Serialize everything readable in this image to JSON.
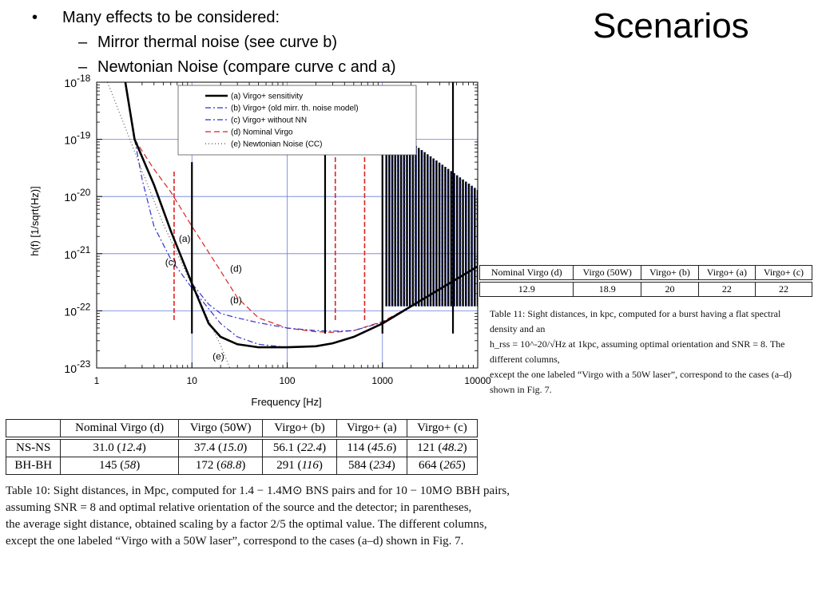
{
  "slide": {
    "title": "Scenarios",
    "bullets": [
      {
        "marker": "•",
        "text": "Many effects to be considered:"
      },
      {
        "marker": "–",
        "text": "Mirror thermal noise (see curve b)"
      },
      {
        "marker": "–",
        "text": "Newtonian Noise (compare curve c and a)"
      }
    ]
  },
  "chart_data": {
    "type": "line",
    "xlabel": "Frequency [Hz]",
    "ylabel": "h(f)  [1/sqrt(Hz)]",
    "xscale": "log",
    "yscale": "log",
    "xlim": [
      1,
      10000
    ],
    "ylim": [
      1e-23,
      1e-18
    ],
    "grid": true,
    "legend_position": "top-center",
    "x_ticks": [
      "1",
      "10",
      "100",
      "1000",
      "10000"
    ],
    "y_ticks": [
      {
        "base": "10",
        "exp": "-23"
      },
      {
        "base": "10",
        "exp": "-22"
      },
      {
        "base": "10",
        "exp": "-21"
      },
      {
        "base": "10",
        "exp": "-20"
      },
      {
        "base": "10",
        "exp": "-19"
      },
      {
        "base": "10",
        "exp": "-18"
      }
    ],
    "series": [
      {
        "name": "(a) Virgo+ sensitivity",
        "label": "(a)",
        "color": "#000000",
        "style": "solid",
        "x": [
          2.0,
          2.5,
          4,
          6,
          10,
          15,
          20,
          30,
          50,
          100,
          200,
          300,
          500,
          1000,
          2000,
          5000,
          10000
        ],
        "y": [
          1e-18,
          1e-19,
          1.6e-20,
          2.5e-21,
          3e-22,
          6e-23,
          3.5e-23,
          2.6e-23,
          2.3e-23,
          2.3e-23,
          2.4e-23,
          2.7e-23,
          3.5e-23,
          6e-23,
          1.2e-22,
          3e-22,
          6e-22
        ]
      },
      {
        "name": "(b) Virgo+ (old mirr. th. noise model)",
        "label": "(b)",
        "color": "#3333cc",
        "style": "dashdot",
        "x": [
          2.5,
          4,
          6,
          10,
          15,
          20,
          30,
          50,
          100,
          200,
          300,
          500,
          1000,
          2000,
          5000,
          10000
        ],
        "y": [
          1e-19,
          1.6e-20,
          2.5e-21,
          3e-22,
          1.3e-22,
          9e-23,
          7.5e-23,
          6.2e-23,
          5e-23,
          4.5e-23,
          4.4e-23,
          4.5e-23,
          6.3e-23,
          1.2e-22,
          3e-22,
          6e-22
        ]
      },
      {
        "name": "(c) Virgo+ without NN",
        "label": "(c)",
        "color": "#3333cc",
        "style": "dashdot",
        "x": [
          2.5,
          3,
          4,
          6,
          10,
          20,
          30,
          50,
          100
        ],
        "y": [
          1e-19,
          2e-20,
          3e-21,
          8e-22,
          2.5e-22,
          6e-23,
          3.5e-23,
          2.6e-23,
          2.3e-23
        ]
      },
      {
        "name": "(d) Nominal Virgo",
        "label": "(d)",
        "color": "#dd2222",
        "style": "dashed",
        "x": [
          2.5,
          4,
          6,
          10,
          20,
          30,
          50,
          100,
          200,
          300,
          500,
          1000,
          2000,
          5000,
          10000
        ],
        "y": [
          1e-19,
          3e-20,
          1.2e-20,
          3e-21,
          5e-22,
          1.7e-22,
          7.5e-23,
          5e-23,
          4.3e-23,
          4.2e-23,
          4.5e-23,
          6.5e-23,
          1.2e-22,
          3e-22,
          6e-22
        ]
      },
      {
        "name": "(e) Newtonian Noise (CC)",
        "label": "(e)",
        "color": "#555555",
        "style": "dotted",
        "x": [
          1.3,
          2,
          3,
          5,
          10,
          20,
          25
        ],
        "y": [
          1e-18,
          1.6e-19,
          2.8e-20,
          3.3e-21,
          2.8e-22,
          2.5e-23,
          1e-23
        ]
      }
    ],
    "resonances": [
      {
        "f": 6.5,
        "ymax": 3e-20,
        "color": "#dd2222"
      },
      {
        "f": 10,
        "ymax": 4e-20,
        "color": "#000000"
      },
      {
        "f": 250,
        "ymax": 2e-19,
        "color": "#000000"
      },
      {
        "f": 320,
        "ymax": 2e-19,
        "color": "#dd2222"
      },
      {
        "f": 650,
        "ymax": 2e-19,
        "color": "#dd2222"
      },
      {
        "f": 1000,
        "ymax": 1.5e-19,
        "color": "#000000"
      },
      {
        "f": 5500,
        "ymax": 1e-18,
        "color": "#000000"
      }
    ],
    "comb": {
      "f_start": 1100,
      "f_end": 10000,
      "count": 32,
      "y_start": 1.8e-19,
      "y_end": 1.3e-20,
      "color": "#000000"
    }
  },
  "table11": {
    "headers": [
      "Nominal Virgo (d)",
      "Virgo (50W)",
      "Virgo+ (b)",
      "Virgo+ (a)",
      "Virgo+ (c)"
    ],
    "values": [
      "12.9",
      "18.9",
      "20",
      "22",
      "22"
    ],
    "caption_lines": [
      "Table 11:  Sight distances, in kpc, computed for a burst having a flat spectral density and an",
      "h_rss = 10^-20/√Hz at 1kpc, assuming optimal orientation and SNR = 8.  The different columns,",
      "except the one labeled “Virgo with a 50W laser”, correspond to the cases (a–d) shown in Fig. 7."
    ]
  },
  "table10": {
    "headers": [
      "",
      "Nominal Virgo (d)",
      "Virgo (50W)",
      "Virgo+ (b)",
      "Virgo+ (a)",
      "Virgo+ (c)"
    ],
    "rows": [
      {
        "label": "NS-NS",
        "cells": [
          {
            "v": "31.0",
            "p": "12.4"
          },
          {
            "v": "37.4",
            "p": "15.0"
          },
          {
            "v": "56.1",
            "p": "22.4"
          },
          {
            "v": "114",
            "p": "45.6"
          },
          {
            "v": "121",
            "p": "48.2"
          }
        ]
      },
      {
        "label": "BH-BH",
        "cells": [
          {
            "v": "145",
            "p": "58"
          },
          {
            "v": "172",
            "p": "68.8"
          },
          {
            "v": "291",
            "p": "116"
          },
          {
            "v": "584",
            "p": "234"
          },
          {
            "v": "664",
            "p": "265"
          }
        ]
      }
    ],
    "caption_lines": [
      "Table 10: Sight distances, in Mpc, computed for 1.4 − 1.4M⊙ BNS pairs and for 10 − 10M⊙ BBH pairs,",
      "assuming SNR = 8 and optimal relative orientation of the source and the detector; in parentheses,",
      "the average sight distance, obtained scaling by a factor 2/5 the optimal value.  The different columns,",
      "except the one labeled “Virgo with a 50W laser”, correspond to the cases (a–d) shown in Fig. 7."
    ]
  }
}
